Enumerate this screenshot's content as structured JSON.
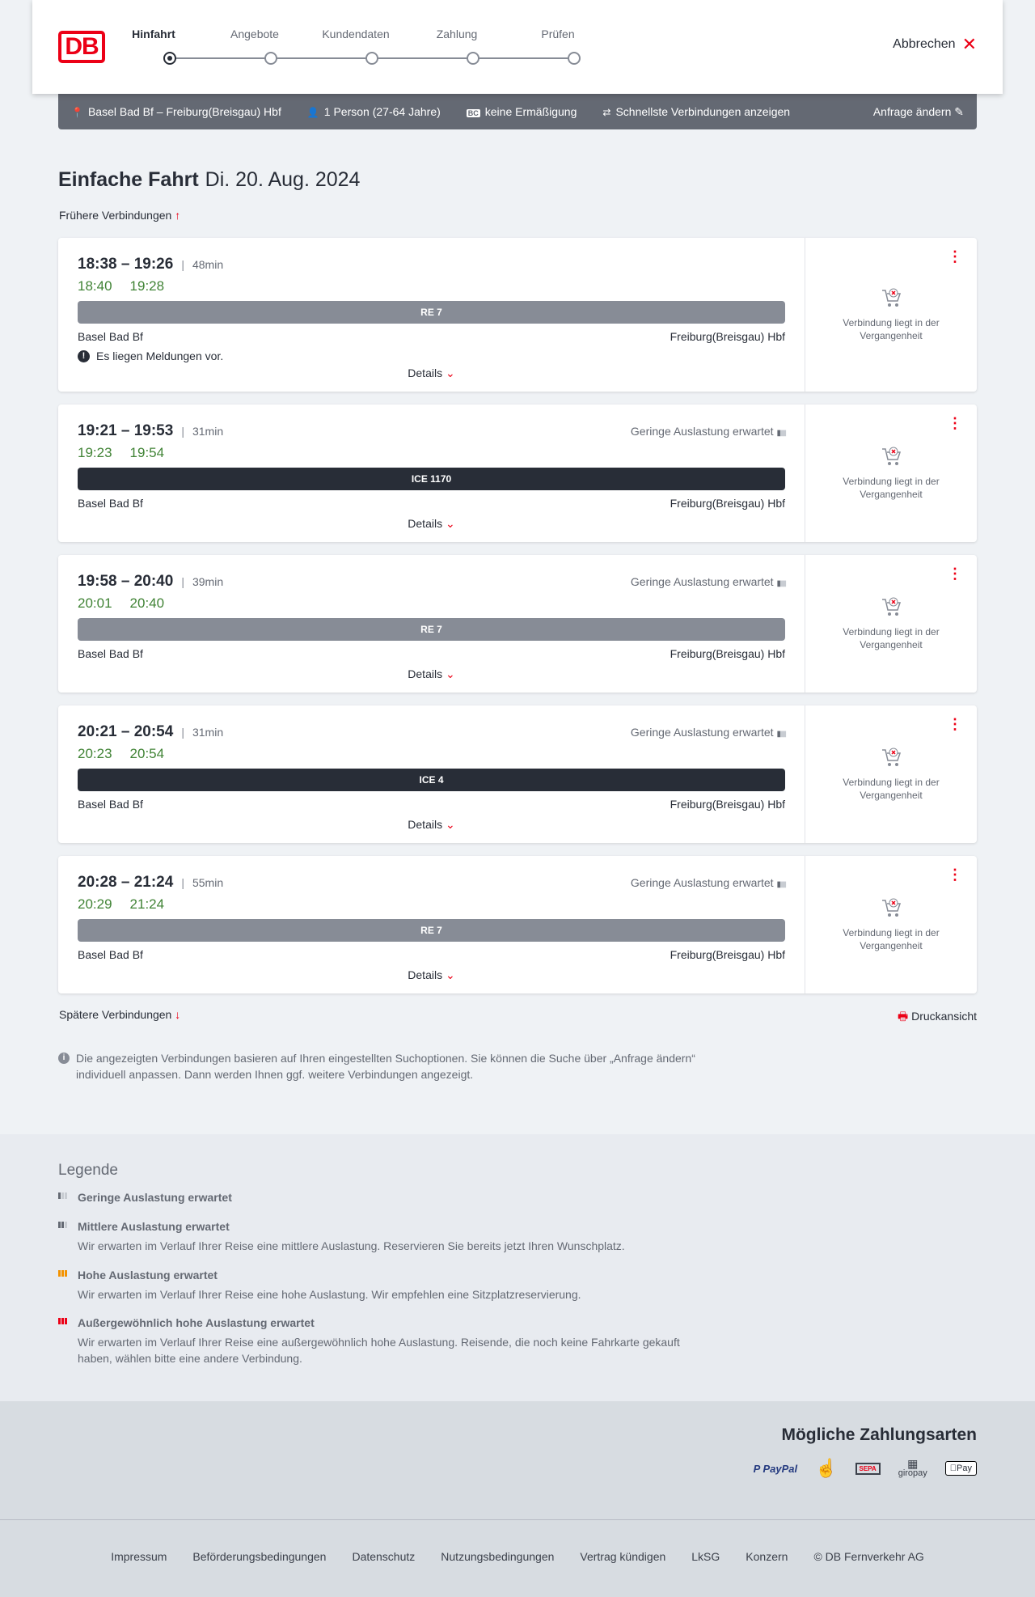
{
  "header": {
    "logo": "DB",
    "steps": [
      "Hinfahrt",
      "Angebote",
      "Kundendaten",
      "Zahlung",
      "Prüfen"
    ],
    "active_step": 0,
    "cancel_label": "Abbrechen"
  },
  "search_bar": {
    "route": "Basel Bad Bf – Freiburg(Breisgau) Hbf",
    "passengers": "1 Person (27-64 Jahre)",
    "discount": "keine Ermäßigung",
    "fastest": "Schnellste Verbindungen anzeigen",
    "change": "Anfrage ändern"
  },
  "page": {
    "title": "Einfache Fahrt",
    "date": "Di. 20. Aug. 2024",
    "earlier": "Frühere Verbindungen",
    "later": "Spätere Verbindungen",
    "print": "Druckansicht",
    "info": "Die angezeigten Verbindungen basieren auf Ihren eingestellten Suchoptionen. Sie können die Suche über „Anfrage ändern“ individuell anpassen. Dann werden Ihnen ggf. weitere Verbindungen angezeigt."
  },
  "connections": [
    {
      "times": "18:38 – 19:26",
      "duration": "48min",
      "rt_dep": "18:40",
      "rt_arr": "19:28",
      "train": "RE 7",
      "train_color": "#878c96",
      "from": "Basel Bad Bf",
      "to": "Freiburg(Breisgau) Hbf",
      "occupancy": "",
      "message": "Es liegen Meldungen vor.",
      "details": "Details",
      "status": "Verbindung liegt in der Vergangenheit"
    },
    {
      "times": "19:21 – 19:53",
      "duration": "31min",
      "rt_dep": "19:23",
      "rt_arr": "19:54",
      "train": "ICE 1170",
      "train_color": "#282d37",
      "from": "Basel Bad Bf",
      "to": "Freiburg(Breisgau) Hbf",
      "occupancy": "Geringe Auslastung erwartet",
      "details": "Details",
      "status": "Verbindung liegt in der Vergangenheit"
    },
    {
      "times": "19:58 – 20:40",
      "duration": "39min",
      "rt_dep": "20:01",
      "rt_arr": "20:40",
      "train": "RE 7",
      "train_color": "#878c96",
      "from": "Basel Bad Bf",
      "to": "Freiburg(Breisgau) Hbf",
      "occupancy": "Geringe Auslastung erwartet",
      "details": "Details",
      "status": "Verbindung liegt in der Vergangenheit"
    },
    {
      "times": "20:21 – 20:54",
      "duration": "31min",
      "rt_dep": "20:23",
      "rt_arr": "20:54",
      "train": "ICE 4",
      "train_color": "#282d37",
      "from": "Basel Bad Bf",
      "to": "Freiburg(Breisgau) Hbf",
      "occupancy": "Geringe Auslastung erwartet",
      "details": "Details",
      "status": "Verbindung liegt in der Vergangenheit"
    },
    {
      "times": "20:28 – 21:24",
      "duration": "55min",
      "rt_dep": "20:29",
      "rt_arr": "21:24",
      "train": "RE 7",
      "train_color": "#878c96",
      "from": "Basel Bad Bf",
      "to": "Freiburg(Breisgau) Hbf",
      "occupancy": "Geringe Auslastung erwartet",
      "details": "Details",
      "status": "Verbindung liegt in der Vergangenheit"
    }
  ],
  "legend": {
    "title": "Legende",
    "items": [
      {
        "title": "Geringe Auslastung erwartet",
        "desc": "",
        "level": 1,
        "color": "#646973"
      },
      {
        "title": "Mittlere Auslastung erwartet",
        "desc": "Wir erwarten im Verlauf Ihrer Reise eine mittlere Auslastung. Reservieren Sie bereits jetzt Ihren Wunschplatz.",
        "level": 2,
        "color": "#646973"
      },
      {
        "title": "Hohe Auslastung erwartet",
        "desc": "Wir erwarten im Verlauf Ihrer Reise eine hohe Auslastung. Wir empfehlen eine Sitzplatzreservierung.",
        "level": 3,
        "color": "#f39200"
      },
      {
        "title": "Außergewöhnlich hohe Auslastung erwartet",
        "desc": "Wir erwarten im Verlauf Ihrer Reise eine außergewöhnlich hohe Auslastung. Reisende, die noch keine Fahrkarte gekauft haben, wählen bitte eine andere Verbindung.",
        "level": 4,
        "color": "#ec0016"
      }
    ]
  },
  "payment": {
    "title": "Mögliche Zahlungsarten",
    "methods": [
      "PayPal",
      "Kreditkarte",
      "SEPA",
      "giropay",
      "Pay"
    ]
  },
  "footer": {
    "links": [
      "Impressum",
      "Beförderungsbedingungen",
      "Datenschutz",
      "Nutzungsbedingungen",
      "Vertrag kündigen",
      "LkSG",
      "Konzern",
      "© DB Fernverkehr AG"
    ]
  }
}
